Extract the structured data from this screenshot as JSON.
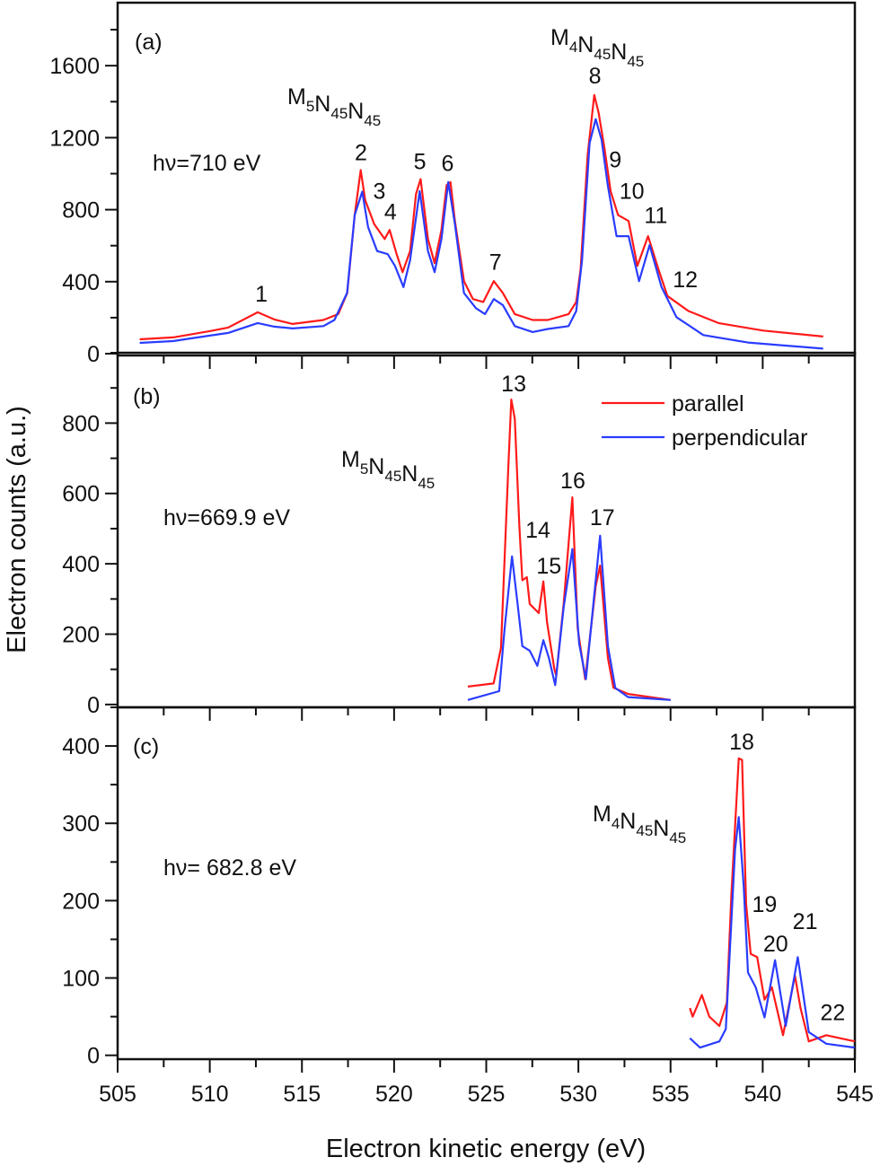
{
  "chart_data": {
    "type": "line",
    "xlabel": "Electron kinetic energy (eV)",
    "ylabel": "Electron counts (a.u.)",
    "xlim": [
      505,
      545
    ],
    "xticks": [
      505,
      510,
      515,
      520,
      525,
      530,
      535,
      540,
      545
    ],
    "xminor_step": 2.5,
    "legend": {
      "placement": "panel (b) top-right",
      "entries": [
        "parallel",
        "perpendicular"
      ]
    },
    "colors": {
      "parallel": "#ff1a1a",
      "perpendicular": "#2a3cff"
    },
    "panels": [
      {
        "panel_label": "(a)",
        "photon_energy": "hν=710 eV",
        "ylim": [
          -10,
          1950
        ],
        "yticks": [
          0,
          400,
          800,
          1200,
          1600
        ],
        "yminor_step": 200,
        "transitions": [
          {
            "text": "M5N45N45",
            "parts": [
              [
                "M",
                "5"
              ],
              [
                "N",
                "45"
              ],
              [
                "N",
                "45"
              ]
            ]
          },
          {
            "text": "M4N45N45",
            "parts": [
              [
                "M",
                "4"
              ],
              [
                "N",
                "45"
              ],
              [
                "N",
                "45"
              ]
            ]
          }
        ],
        "series": [
          {
            "name": "parallel",
            "points": [
              [
                506.2,
                80
              ],
              [
                508,
                90
              ],
              [
                510,
                125
              ],
              [
                511,
                145
              ],
              [
                512.6,
                230
              ],
              [
                513.5,
                190
              ],
              [
                514.5,
                165
              ],
              [
                516.16,
                187
              ],
              [
                516.97,
                220
              ],
              [
                517.46,
                337
              ],
              [
                517.86,
                770
              ],
              [
                518.19,
                1020
              ],
              [
                518.43,
                853
              ],
              [
                518.92,
                720
              ],
              [
                519.49,
                637
              ],
              [
                519.76,
                687
              ],
              [
                520.14,
                553
              ],
              [
                520.46,
                453
              ],
              [
                520.87,
                570
              ],
              [
                521.19,
                887
              ],
              [
                521.44,
                970
              ],
              [
                521.84,
                637
              ],
              [
                522.2,
                503
              ],
              [
                522.57,
                687
              ],
              [
                522.85,
                937
              ],
              [
                523.06,
                953
              ],
              [
                523.3,
                737
              ],
              [
                523.79,
                403
              ],
              [
                524.28,
                303
              ],
              [
                524.84,
                287
              ],
              [
                525.41,
                403
              ],
              [
                525.9,
                337
              ],
              [
                526.55,
                220
              ],
              [
                527.52,
                187
              ],
              [
                528.34,
                187
              ],
              [
                529.47,
                220
              ],
              [
                529.88,
                287
              ],
              [
                530.12,
                470
              ],
              [
                530.5,
                1103
              ],
              [
                530.86,
                1437
              ],
              [
                531.1,
                1337
              ],
              [
                531.42,
                1137
              ],
              [
                531.75,
                903
              ],
              [
                532.15,
                770
              ],
              [
                532.72,
                737
              ],
              [
                533.2,
                487
              ],
              [
                533.78,
                653
              ],
              [
                534.34,
                470
              ],
              [
                534.83,
                320
              ],
              [
                535.97,
                237
              ],
              [
                537.6,
                170
              ],
              [
                540.03,
                128
              ],
              [
                543.28,
                95
              ]
            ]
          },
          {
            "name": "perpendicular",
            "points": [
              [
                506.2,
                60
              ],
              [
                508,
                70
              ],
              [
                510,
                100
              ],
              [
                511,
                115
              ],
              [
                512.6,
                170
              ],
              [
                513.5,
                150
              ],
              [
                514.5,
                140
              ],
              [
                516.16,
                153
              ],
              [
                516.76,
                187
              ],
              [
                517.45,
                337
              ],
              [
                517.86,
                770
              ],
              [
                518.27,
                900
              ],
              [
                518.59,
                703
              ],
              [
                519.08,
                570
              ],
              [
                519.65,
                553
              ],
              [
                520.05,
                487
              ],
              [
                520.51,
                370
              ],
              [
                520.87,
                520
              ],
              [
                521.39,
                903
              ],
              [
                521.84,
                570
              ],
              [
                522.2,
                453
              ],
              [
                522.57,
                637
              ],
              [
                522.94,
                953
              ],
              [
                523.3,
                720
              ],
              [
                523.79,
                337
              ],
              [
                524.44,
                253
              ],
              [
                524.93,
                220
              ],
              [
                525.41,
                303
              ],
              [
                525.9,
                270
              ],
              [
                526.55,
                153
              ],
              [
                527.52,
                120
              ],
              [
                528.34,
                137
              ],
              [
                529.47,
                153
              ],
              [
                529.88,
                237
              ],
              [
                530.2,
                520
              ],
              [
                530.61,
                1170
              ],
              [
                530.94,
                1303
              ],
              [
                531.26,
                1187
              ],
              [
                531.59,
                937
              ],
              [
                532.07,
                653
              ],
              [
                532.72,
                653
              ],
              [
                533.29,
                403
              ],
              [
                533.86,
                603
              ],
              [
                534.51,
                370
              ],
              [
                535.32,
                203
              ],
              [
                536.78,
                103
              ],
              [
                539.2,
                62
              ],
              [
                543.28,
                28
              ]
            ]
          }
        ],
        "peaks": [
          {
            "label": "1",
            "x": 512.8,
            "y": 335
          },
          {
            "label": "2",
            "x": 518.2,
            "y": 1120
          },
          {
            "label": "3",
            "x": 519.2,
            "y": 905
          },
          {
            "label": "4",
            "x": 519.8,
            "y": 790
          },
          {
            "label": "5",
            "x": 521.4,
            "y": 1070
          },
          {
            "label": "6",
            "x": 522.9,
            "y": 1060
          },
          {
            "label": "7",
            "x": 525.5,
            "y": 510
          },
          {
            "label": "8",
            "x": 530.9,
            "y": 1545
          },
          {
            "label": "9",
            "x": 532.0,
            "y": 1080
          },
          {
            "label": "10",
            "x": 532.9,
            "y": 905
          },
          {
            "label": "11",
            "x": 534.2,
            "y": 770
          },
          {
            "label": "12",
            "x": 535.8,
            "y": 415
          }
        ]
      },
      {
        "panel_label": "(b)",
        "photon_energy": "hν=669.9 eV",
        "ylim": [
          -8,
          1000
        ],
        "yticks": [
          0,
          200,
          400,
          600,
          800
        ],
        "yminor_step": 100,
        "transitions": [
          {
            "text": "M5N45N45",
            "parts": [
              [
                "M",
                "5"
              ],
              [
                "N",
                "45"
              ],
              [
                "N",
                "45"
              ]
            ]
          }
        ],
        "series": [
          {
            "name": "parallel",
            "points": [
              [
                524.0,
                51
              ],
              [
                525.4,
                60
              ],
              [
                525.8,
                161
              ],
              [
                526.2,
                676
              ],
              [
                526.36,
                867
              ],
              [
                526.55,
                812
              ],
              [
                526.8,
                506
              ],
              [
                526.96,
                353
              ],
              [
                527.2,
                362
              ],
              [
                527.36,
                286
              ],
              [
                527.85,
                260
              ],
              [
                528.1,
                350
              ],
              [
                528.3,
                234
              ],
              [
                528.7,
                100
              ],
              [
                528.8,
                82
              ],
              [
                529.2,
                286
              ],
              [
                529.67,
                589
              ],
              [
                529.96,
                217
              ],
              [
                530.37,
                72
              ],
              [
                530.94,
                336
              ],
              [
                531.18,
                395
              ],
              [
                531.6,
                132
              ],
              [
                531.9,
                48
              ],
              [
                532.7,
                30
              ],
              [
                535.0,
                13
              ]
            ]
          },
          {
            "name": "perpendicular",
            "points": [
              [
                524.0,
                13
              ],
              [
                525.7,
                38
              ],
              [
                526.0,
                217
              ],
              [
                526.4,
                421
              ],
              [
                526.7,
                286
              ],
              [
                526.96,
                166
              ],
              [
                527.36,
                153
              ],
              [
                527.77,
                110
              ],
              [
                528.1,
                183
              ],
              [
                528.4,
                132
              ],
              [
                528.74,
                55
              ],
              [
                529.2,
                276
              ],
              [
                529.67,
                442
              ],
              [
                530.04,
                174
              ],
              [
                530.41,
                72
              ],
              [
                530.94,
                353
              ],
              [
                531.18,
                480
              ],
              [
                531.6,
                166
              ],
              [
                532.0,
                47
              ],
              [
                532.7,
                21
              ],
              [
                535.0,
                13
              ]
            ]
          }
        ],
        "peaks": [
          {
            "label": "13",
            "x": 526.49,
            "y": 913
          },
          {
            "label": "14",
            "x": 527.8,
            "y": 497
          },
          {
            "label": "15",
            "x": 528.4,
            "y": 395
          },
          {
            "label": "16",
            "x": 529.7,
            "y": 638
          },
          {
            "label": "17",
            "x": 531.3,
            "y": 533
          }
        ]
      },
      {
        "panel_label": "(c)",
        "photon_energy": "hν= 682.8 eV",
        "ylim": [
          -5,
          450
        ],
        "yticks": [
          0,
          100,
          200,
          300,
          400
        ],
        "yminor_step": 50,
        "transitions": [
          {
            "text": "M4N45N45",
            "parts": [
              [
                "M",
                "4"
              ],
              [
                "N",
                "45"
              ],
              [
                "N",
                "45"
              ]
            ]
          }
        ],
        "series": [
          {
            "name": "parallel",
            "points": [
              [
                536.05,
                61
              ],
              [
                536.2,
                50
              ],
              [
                536.7,
                78
              ],
              [
                537.1,
                50
              ],
              [
                537.65,
                38
              ],
              [
                538.05,
                68
              ],
              [
                538.3,
                208
              ],
              [
                538.7,
                384
              ],
              [
                538.88,
                382
              ],
              [
                539.1,
                196
              ],
              [
                539.35,
                131
              ],
              [
                539.7,
                127
              ],
              [
                540.1,
                72
              ],
              [
                540.5,
                88
              ],
              [
                541.1,
                26
              ],
              [
                541.75,
                103
              ],
              [
                542.05,
                61
              ],
              [
                542.5,
                18
              ],
              [
                543.45,
                26
              ],
              [
                545.0,
                18
              ]
            ]
          },
          {
            "name": "perpendicular",
            "points": [
              [
                536.05,
                22
              ],
              [
                536.6,
                10
              ],
              [
                537.65,
                18
              ],
              [
                538.0,
                34
              ],
              [
                538.5,
                266
              ],
              [
                538.7,
                308
              ],
              [
                538.97,
                219
              ],
              [
                539.2,
                107
              ],
              [
                539.62,
                88
              ],
              [
                540.1,
                49
              ],
              [
                540.67,
                123
              ],
              [
                541.25,
                38
              ],
              [
                541.9,
                127
              ],
              [
                542.5,
                30
              ],
              [
                543.45,
                15
              ],
              [
                545.0,
                10
              ]
            ]
          }
        ],
        "peaks": [
          {
            "label": "18",
            "x": 538.86,
            "y": 406
          },
          {
            "label": "19",
            "x": 540.1,
            "y": 196
          },
          {
            "label": "20",
            "x": 540.7,
            "y": 145
          },
          {
            "label": "21",
            "x": 542.3,
            "y": 174
          },
          {
            "label": "22",
            "x": 543.8,
            "y": 56
          }
        ]
      }
    ]
  }
}
